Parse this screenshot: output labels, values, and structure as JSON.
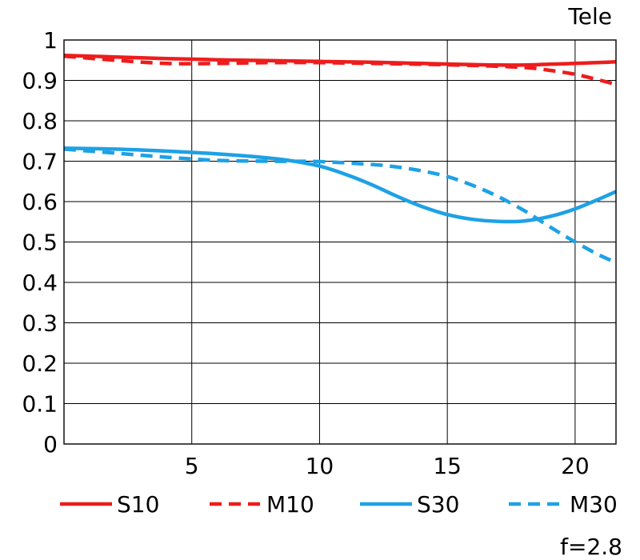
{
  "chart_data": {
    "type": "line",
    "title": "Tele",
    "footnote": "f=2.8",
    "xlim": [
      0,
      21.6
    ],
    "ylim": [
      0,
      1
    ],
    "x_ticks": [
      5,
      10,
      15,
      20
    ],
    "x_tick_labels": [
      "5",
      "10",
      "15",
      "20"
    ],
    "y_ticks": [
      0,
      0.1,
      0.2,
      0.3,
      0.4,
      0.5,
      0.6,
      0.7,
      0.8,
      0.9,
      1
    ],
    "y_tick_labels": [
      "0",
      "0.1",
      "0.2",
      "0.3",
      "0.4",
      "0.5",
      "0.6",
      "0.7",
      "0.8",
      "0.9",
      "1"
    ],
    "grid": true,
    "legend_position": "bottom",
    "series": [
      {
        "name": "S10",
        "color": "#ee1c1c",
        "style": "solid",
        "x": [
          0,
          2,
          4,
          6,
          8,
          10,
          12,
          14,
          16,
          17,
          18,
          19,
          20,
          21.6
        ],
        "y": [
          0.962,
          0.958,
          0.954,
          0.951,
          0.949,
          0.947,
          0.945,
          0.942,
          0.939,
          0.938,
          0.938,
          0.94,
          0.942,
          0.946
        ]
      },
      {
        "name": "M10",
        "color": "#ee1c1c",
        "style": "dashed",
        "x": [
          0,
          2,
          4,
          6,
          8,
          10,
          12,
          14,
          16,
          18,
          19,
          20,
          21,
          21.6
        ],
        "y": [
          0.96,
          0.95,
          0.942,
          0.942,
          0.944,
          0.944,
          0.942,
          0.94,
          0.937,
          0.932,
          0.925,
          0.915,
          0.9,
          0.89
        ]
      },
      {
        "name": "S30",
        "color": "#1ea1e6",
        "style": "solid",
        "x": [
          0,
          2,
          4,
          6,
          8,
          9,
          10,
          11,
          12,
          13,
          14,
          15,
          16,
          17,
          18,
          19,
          20,
          21,
          21.6
        ],
        "y": [
          0.732,
          0.73,
          0.725,
          0.718,
          0.708,
          0.7,
          0.688,
          0.668,
          0.643,
          0.614,
          0.588,
          0.568,
          0.556,
          0.551,
          0.552,
          0.563,
          0.582,
          0.608,
          0.625
        ]
      },
      {
        "name": "M30",
        "color": "#1ea1e6",
        "style": "dashed",
        "x": [
          0,
          2,
          4,
          6,
          8,
          10,
          12,
          13,
          14,
          15,
          16,
          17,
          18,
          19,
          20,
          21,
          21.6
        ],
        "y": [
          0.73,
          0.72,
          0.71,
          0.702,
          0.7,
          0.699,
          0.692,
          0.686,
          0.676,
          0.662,
          0.64,
          0.612,
          0.578,
          0.538,
          0.5,
          0.466,
          0.45
        ]
      }
    ]
  }
}
